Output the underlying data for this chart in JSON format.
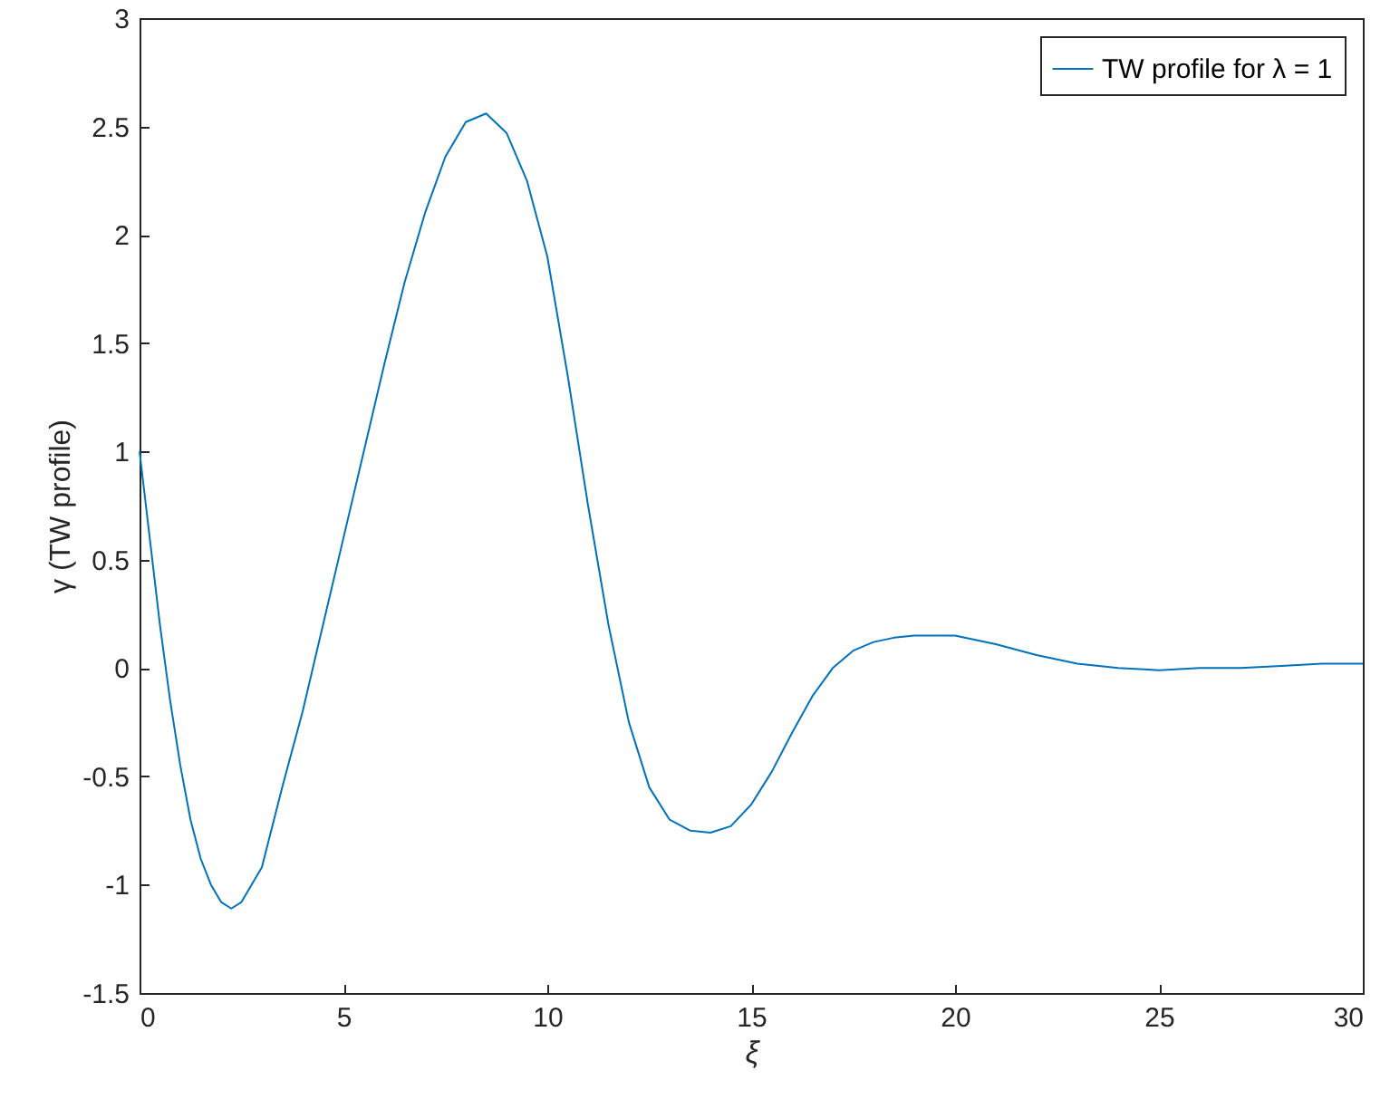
{
  "chart_data": {
    "type": "line",
    "xlabel": "ξ",
    "ylabel": "γ     (TW profile)",
    "xlim": [
      0,
      30
    ],
    "xticks": [
      0,
      5,
      10,
      15,
      20,
      25,
      30
    ],
    "ylim": [
      -1.5,
      3
    ],
    "yticks": [
      -1.5,
      -1,
      -0.5,
      0,
      0.5,
      1,
      1.5,
      2,
      2.5,
      3
    ],
    "grid": false,
    "legend": "top right",
    "marker": "none",
    "line_style": "solid",
    "x": [
      0,
      0.25,
      0.5,
      0.75,
      1,
      1.25,
      1.5,
      1.75,
      2,
      2.25,
      2.5,
      3,
      3.5,
      4,
      4.5,
      5,
      5.5,
      6,
      6.5,
      7,
      7.5,
      8,
      8.5,
      9,
      9.5,
      10,
      10.5,
      11,
      11.5,
      12,
      12.5,
      13,
      13.5,
      14,
      14.5,
      15,
      15.5,
      16,
      16.5,
      17,
      17.5,
      18,
      18.5,
      19,
      19.5,
      20,
      21,
      22,
      23,
      24,
      25,
      26,
      27,
      28,
      29,
      30
    ],
    "series": [
      {
        "name": "TW profile for λ = 1",
        "color": "#0072bd",
        "values": [
          1.0,
          0.6,
          0.2,
          -0.15,
          -0.45,
          -0.7,
          -0.88,
          -1.0,
          -1.08,
          -1.11,
          -1.08,
          -0.92,
          -0.55,
          -0.2,
          0.2,
          0.6,
          1.0,
          1.4,
          1.78,
          2.1,
          2.36,
          2.52,
          2.56,
          2.47,
          2.25,
          1.9,
          1.35,
          0.75,
          0.2,
          -0.25,
          -0.55,
          -0.7,
          -0.75,
          -0.76,
          -0.73,
          -0.63,
          -0.48,
          -0.3,
          -0.13,
          0.0,
          0.08,
          0.12,
          0.14,
          0.15,
          0.15,
          0.15,
          0.11,
          0.06,
          0.02,
          0.0,
          -0.01,
          0.0,
          0.0,
          0.01,
          0.02,
          0.02
        ]
      }
    ]
  }
}
